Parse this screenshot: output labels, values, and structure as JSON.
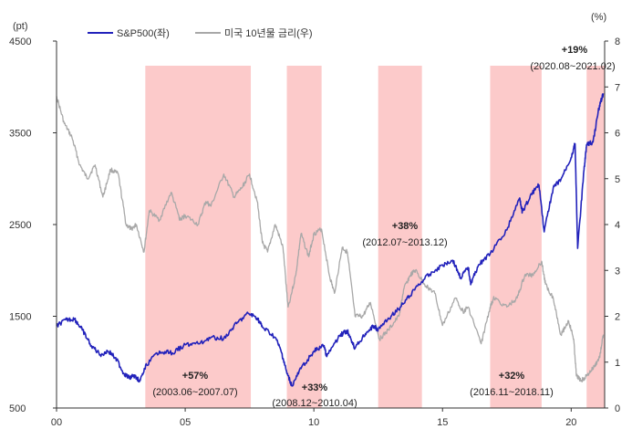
{
  "chart_data": {
    "type": "line",
    "left_axis": {
      "unit": "(pt)",
      "range": [
        500,
        4500
      ],
      "ticks": [
        500,
        1500,
        2500,
        3500,
        4500
      ]
    },
    "right_axis": {
      "unit": "(%)",
      "range": [
        0,
        8
      ],
      "ticks": [
        0,
        1,
        2,
        3,
        4,
        5,
        6,
        7,
        8
      ]
    },
    "x_axis": {
      "range": [
        2000.0,
        2021.3
      ],
      "tick_values": [
        2000,
        2005,
        2010,
        2015,
        2020
      ],
      "tick_labels": [
        "00",
        "05",
        "10",
        "15",
        "20"
      ]
    },
    "legend_position": "top-left",
    "series": [
      {
        "name": "S&P500(좌)",
        "axis": "left",
        "color": "#2222bb",
        "points": [
          [
            2000.0,
            1400
          ],
          [
            2000.4,
            1460
          ],
          [
            2000.7,
            1470
          ],
          [
            2001.0,
            1350
          ],
          [
            2001.3,
            1200
          ],
          [
            2001.7,
            1080
          ],
          [
            2002.0,
            1120
          ],
          [
            2002.3,
            1050
          ],
          [
            2002.6,
            880
          ],
          [
            2002.8,
            830
          ],
          [
            2003.0,
            850
          ],
          [
            2003.25,
            800
          ],
          [
            2003.5,
            970
          ],
          [
            2004.0,
            1120
          ],
          [
            2004.5,
            1100
          ],
          [
            2005.0,
            1190
          ],
          [
            2005.5,
            1200
          ],
          [
            2006.0,
            1270
          ],
          [
            2006.5,
            1260
          ],
          [
            2007.0,
            1420
          ],
          [
            2007.45,
            1530
          ],
          [
            2007.8,
            1480
          ],
          [
            2008.0,
            1380
          ],
          [
            2008.5,
            1270
          ],
          [
            2008.75,
            1100
          ],
          [
            2008.95,
            880
          ],
          [
            2009.15,
            740
          ],
          [
            2009.5,
            930
          ],
          [
            2010.0,
            1120
          ],
          [
            2010.4,
            1180
          ],
          [
            2010.5,
            1060
          ],
          [
            2011.0,
            1290
          ],
          [
            2011.3,
            1340
          ],
          [
            2011.6,
            1150
          ],
          [
            2012.0,
            1310
          ],
          [
            2012.3,
            1390
          ],
          [
            2012.5,
            1360
          ],
          [
            2013.0,
            1500
          ],
          [
            2013.5,
            1640
          ],
          [
            2013.95,
            1810
          ],
          [
            2014.5,
            1960
          ],
          [
            2015.0,
            2060
          ],
          [
            2015.4,
            2110
          ],
          [
            2015.7,
            1920
          ],
          [
            2016.0,
            2030
          ],
          [
            2016.1,
            1850
          ],
          [
            2016.4,
            2060
          ],
          [
            2016.85,
            2180
          ],
          [
            2017.5,
            2440
          ],
          [
            2018.0,
            2790
          ],
          [
            2018.1,
            2640
          ],
          [
            2018.5,
            2850
          ],
          [
            2018.75,
            2930
          ],
          [
            2018.95,
            2420
          ],
          [
            2019.3,
            2900
          ],
          [
            2019.6,
            2990
          ],
          [
            2020.0,
            3230
          ],
          [
            2020.15,
            3380
          ],
          [
            2020.25,
            2240
          ],
          [
            2020.5,
            3100
          ],
          [
            2020.6,
            3370
          ],
          [
            2020.85,
            3400
          ],
          [
            2021.1,
            3800
          ],
          [
            2021.25,
            3930
          ]
        ]
      },
      {
        "name": "미국 10년물 금리(우)",
        "axis": "right",
        "color": "#a8a8a8",
        "points": [
          [
            2000.0,
            6.8
          ],
          [
            2000.3,
            6.2
          ],
          [
            2000.6,
            5.9
          ],
          [
            2000.9,
            5.3
          ],
          [
            2001.2,
            5.0
          ],
          [
            2001.5,
            5.3
          ],
          [
            2001.8,
            4.6
          ],
          [
            2002.1,
            5.2
          ],
          [
            2002.4,
            5.1
          ],
          [
            2002.7,
            4.0
          ],
          [
            2002.9,
            3.9
          ],
          [
            2003.1,
            4.0
          ],
          [
            2003.4,
            3.4
          ],
          [
            2003.6,
            4.3
          ],
          [
            2004.0,
            4.1
          ],
          [
            2004.45,
            4.7
          ],
          [
            2004.8,
            4.1
          ],
          [
            2005.0,
            4.2
          ],
          [
            2005.5,
            4.0
          ],
          [
            2005.8,
            4.5
          ],
          [
            2006.0,
            4.4
          ],
          [
            2006.5,
            5.1
          ],
          [
            2006.9,
            4.6
          ],
          [
            2007.2,
            4.8
          ],
          [
            2007.5,
            5.1
          ],
          [
            2007.8,
            4.5
          ],
          [
            2008.0,
            3.6
          ],
          [
            2008.2,
            3.4
          ],
          [
            2008.5,
            4.0
          ],
          [
            2008.8,
            3.5
          ],
          [
            2009.0,
            2.2
          ],
          [
            2009.3,
            2.9
          ],
          [
            2009.5,
            3.8
          ],
          [
            2009.8,
            3.3
          ],
          [
            2010.0,
            3.8
          ],
          [
            2010.3,
            3.9
          ],
          [
            2010.6,
            2.9
          ],
          [
            2010.8,
            2.5
          ],
          [
            2011.1,
            3.5
          ],
          [
            2011.3,
            3.4
          ],
          [
            2011.6,
            2.0
          ],
          [
            2011.9,
            2.0
          ],
          [
            2012.2,
            2.3
          ],
          [
            2012.55,
            1.5
          ],
          [
            2012.9,
            1.7
          ],
          [
            2013.3,
            2.0
          ],
          [
            2013.5,
            2.6
          ],
          [
            2013.75,
            2.9
          ],
          [
            2013.95,
            3.0
          ],
          [
            2014.3,
            2.7
          ],
          [
            2014.7,
            2.5
          ],
          [
            2015.0,
            1.8
          ],
          [
            2015.5,
            2.4
          ],
          [
            2015.8,
            2.1
          ],
          [
            2016.0,
            2.2
          ],
          [
            2016.5,
            1.4
          ],
          [
            2016.85,
            2.2
          ],
          [
            2017.0,
            2.4
          ],
          [
            2017.5,
            2.2
          ],
          [
            2017.9,
            2.4
          ],
          [
            2018.2,
            2.9
          ],
          [
            2018.5,
            2.9
          ],
          [
            2018.85,
            3.2
          ],
          [
            2019.0,
            2.7
          ],
          [
            2019.3,
            2.4
          ],
          [
            2019.6,
            1.6
          ],
          [
            2019.9,
            1.9
          ],
          [
            2020.1,
            1.5
          ],
          [
            2020.2,
            0.7
          ],
          [
            2020.4,
            0.6
          ],
          [
            2020.6,
            0.7
          ],
          [
            2020.9,
            0.9
          ],
          [
            2021.1,
            1.1
          ],
          [
            2021.25,
            1.6
          ]
        ]
      }
    ],
    "shaded_periods": [
      {
        "start": 2003.45,
        "end": 2007.55,
        "gain": "+57%",
        "period": "(2003.06~2007.07)"
      },
      {
        "start": 2008.95,
        "end": 2010.3,
        "gain": "+33%",
        "period": "(2008.12~2010.04)"
      },
      {
        "start": 2012.5,
        "end": 2014.2,
        "gain": "+38%",
        "period": "(2012.07~2013.12)"
      },
      {
        "start": 2016.85,
        "end": 2018.85,
        "gain": "+32%",
        "period": "(2016.11~2018.11)"
      },
      {
        "start": 2020.6,
        "end": 2021.3,
        "gain": "+19%",
        "period": "(2020.08~2021.02)"
      }
    ],
    "shade_color": "#fccaca"
  }
}
